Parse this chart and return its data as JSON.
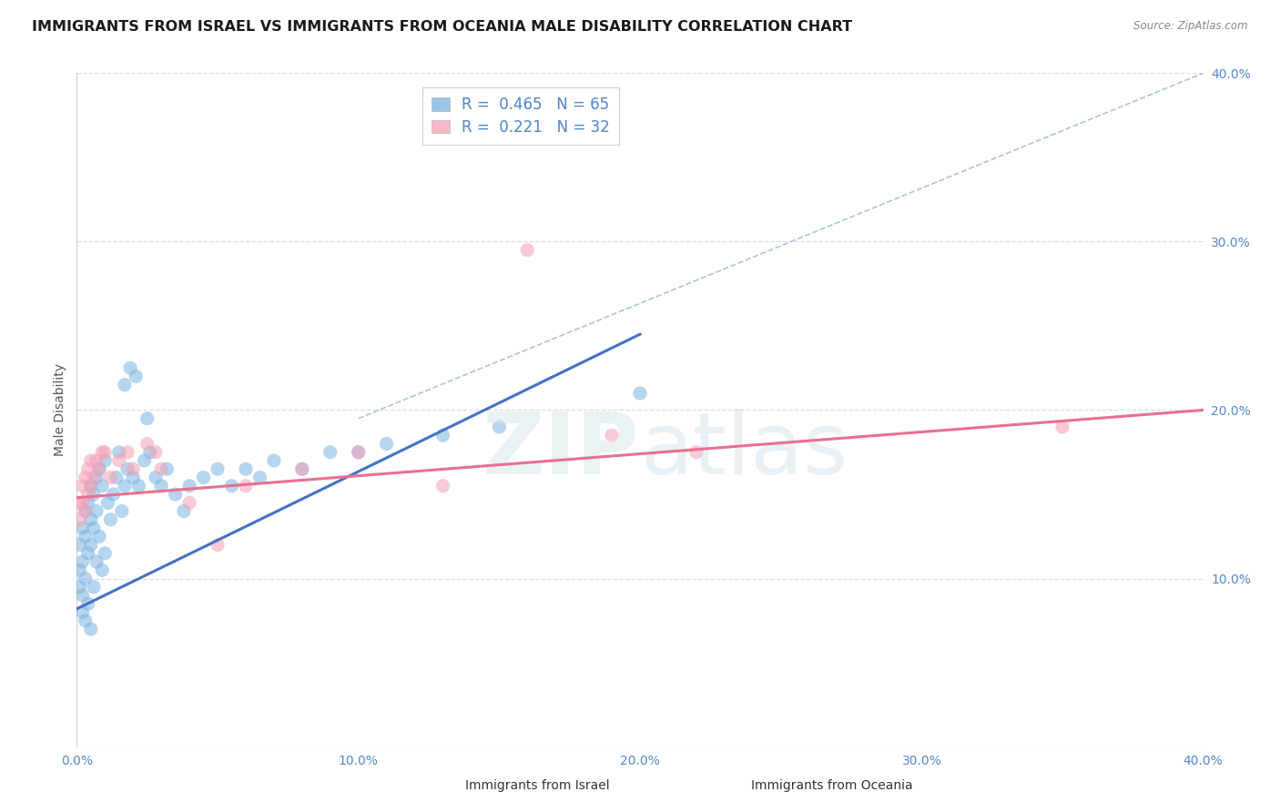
{
  "title": "IMMIGRANTS FROM ISRAEL VS IMMIGRANTS FROM OCEANIA MALE DISABILITY CORRELATION CHART",
  "source": "Source: ZipAtlas.com",
  "ylabel": "Male Disability",
  "xlim": [
    0.0,
    0.4
  ],
  "ylim": [
    0.0,
    0.4
  ],
  "xticks": [
    0.0,
    0.1,
    0.2,
    0.3,
    0.4
  ],
  "yticks": [
    0.1,
    0.2,
    0.3,
    0.4
  ],
  "blue_R": 0.465,
  "blue_N": 65,
  "pink_R": 0.221,
  "pink_N": 32,
  "blue_color": "#7ab3e0",
  "pink_color": "#f4a0b5",
  "blue_line_color": "#4472c4",
  "pink_line_color": "#e87090",
  "dashed_line_color": "#b0c4d8",
  "legend_label_blue": "Immigrants from Israel",
  "legend_label_pink": "Immigrants from Oceania",
  "blue_scatter_x": [
    0.001,
    0.001,
    0.001,
    0.002,
    0.002,
    0.002,
    0.002,
    0.003,
    0.003,
    0.003,
    0.003,
    0.004,
    0.004,
    0.004,
    0.005,
    0.005,
    0.005,
    0.005,
    0.006,
    0.006,
    0.006,
    0.007,
    0.007,
    0.007,
    0.008,
    0.008,
    0.009,
    0.009,
    0.01,
    0.01,
    0.011,
    0.012,
    0.013,
    0.014,
    0.015,
    0.016,
    0.017,
    0.018,
    0.02,
    0.022,
    0.024,
    0.026,
    0.028,
    0.03,
    0.032,
    0.035,
    0.038,
    0.04,
    0.045,
    0.05,
    0.055,
    0.06,
    0.065,
    0.07,
    0.08,
    0.09,
    0.1,
    0.11,
    0.13,
    0.15,
    0.017,
    0.019,
    0.021,
    0.025,
    0.2
  ],
  "blue_scatter_y": [
    0.12,
    0.105,
    0.095,
    0.13,
    0.11,
    0.09,
    0.08,
    0.14,
    0.125,
    0.1,
    0.075,
    0.145,
    0.115,
    0.085,
    0.155,
    0.135,
    0.12,
    0.07,
    0.15,
    0.13,
    0.095,
    0.16,
    0.14,
    0.11,
    0.165,
    0.125,
    0.155,
    0.105,
    0.17,
    0.115,
    0.145,
    0.135,
    0.15,
    0.16,
    0.175,
    0.14,
    0.155,
    0.165,
    0.16,
    0.155,
    0.17,
    0.175,
    0.16,
    0.155,
    0.165,
    0.15,
    0.14,
    0.155,
    0.16,
    0.165,
    0.155,
    0.165,
    0.16,
    0.17,
    0.165,
    0.175,
    0.175,
    0.18,
    0.185,
    0.19,
    0.215,
    0.225,
    0.22,
    0.195,
    0.21
  ],
  "pink_scatter_x": [
    0.001,
    0.001,
    0.002,
    0.002,
    0.003,
    0.003,
    0.004,
    0.004,
    0.005,
    0.005,
    0.006,
    0.007,
    0.008,
    0.009,
    0.01,
    0.012,
    0.015,
    0.018,
    0.02,
    0.025,
    0.028,
    0.03,
    0.04,
    0.05,
    0.06,
    0.08,
    0.1,
    0.13,
    0.16,
    0.19,
    0.22,
    0.35
  ],
  "pink_scatter_y": [
    0.145,
    0.135,
    0.155,
    0.145,
    0.16,
    0.14,
    0.165,
    0.15,
    0.17,
    0.155,
    0.16,
    0.17,
    0.165,
    0.175,
    0.175,
    0.16,
    0.17,
    0.175,
    0.165,
    0.18,
    0.175,
    0.165,
    0.145,
    0.12,
    0.155,
    0.165,
    0.175,
    0.155,
    0.295,
    0.185,
    0.175,
    0.19
  ],
  "blue_line_x": [
    0.0,
    0.2
  ],
  "blue_line_y": [
    0.082,
    0.245
  ],
  "pink_line_x": [
    0.0,
    0.4
  ],
  "pink_line_y": [
    0.148,
    0.2
  ],
  "dashed_line_x": [
    0.1,
    0.4
  ],
  "dashed_line_y": [
    0.195,
    0.4
  ],
  "grid_color": "#d8dfe8",
  "background_color": "#ffffff",
  "title_fontsize": 11.5,
  "axis_label_fontsize": 10,
  "tick_fontsize": 10,
  "legend_fontsize": 12
}
